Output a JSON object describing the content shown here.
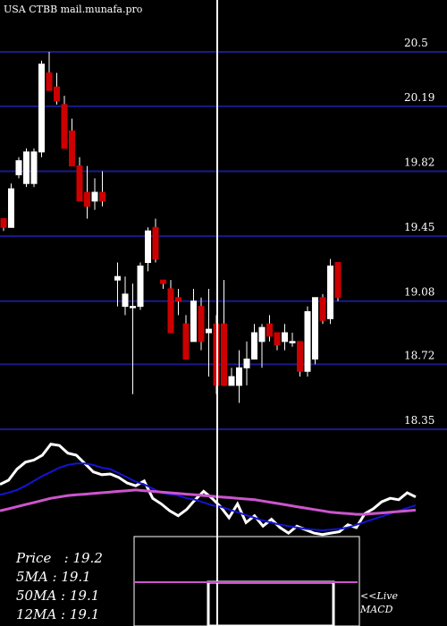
{
  "header": {
    "title": "USA CTBB mail.munafa.pro"
  },
  "legend": {
    "price": "Price   : 19.2",
    "ma5": "5MA : 19.1",
    "ma50": "50MA : 19.1",
    "ma12": "12MA : 19.1"
  },
  "macd": {
    "live_label": "<<Live",
    "macd_label": "MACD"
  },
  "colors": {
    "background": "#000000",
    "grid": "#1a1a8c",
    "up": "#ffffff",
    "down": "#cc0000",
    "ema_fast": "#1414d2",
    "ema_slow": "#cc55cc",
    "price_line": "#ffffff"
  },
  "chart_data": [
    {
      "type": "candlestick",
      "title": "USA CTBB mail.munafa.pro",
      "yticks": [
        20.5,
        20.19,
        19.82,
        19.45,
        19.08,
        18.72,
        18.35
      ],
      "ylim": [
        18.35,
        20.5
      ],
      "highlight_index": 28,
      "candles": [
        {
          "o": 19.55,
          "h": 19.55,
          "l": 19.48,
          "c": 19.5
        },
        {
          "o": 19.5,
          "h": 19.75,
          "l": 19.5,
          "c": 19.72
        },
        {
          "o": 19.8,
          "h": 19.9,
          "l": 19.78,
          "c": 19.88
        },
        {
          "o": 19.75,
          "h": 19.95,
          "l": 19.73,
          "c": 19.93
        },
        {
          "o": 19.75,
          "h": 19.95,
          "l": 19.73,
          "c": 19.93
        },
        {
          "o": 19.93,
          "h": 20.45,
          "l": 19.9,
          "c": 20.43
        },
        {
          "o": 20.38,
          "h": 20.5,
          "l": 20.28,
          "c": 20.28
        },
        {
          "o": 20.3,
          "h": 20.38,
          "l": 20.2,
          "c": 20.22
        },
        {
          "o": 20.2,
          "h": 20.25,
          "l": 19.95,
          "c": 19.95
        },
        {
          "o": 20.05,
          "h": 20.12,
          "l": 19.85,
          "c": 19.85
        },
        {
          "o": 19.85,
          "h": 19.9,
          "l": 19.65,
          "c": 19.65
        },
        {
          "o": 19.7,
          "h": 19.85,
          "l": 19.55,
          "c": 19.62
        },
        {
          "o": 19.65,
          "h": 19.78,
          "l": 19.6,
          "c": 19.7
        },
        {
          "o": 19.7,
          "h": 19.82,
          "l": 19.62,
          "c": 19.65
        },
        null,
        {
          "o": 19.2,
          "h": 19.3,
          "l": 19.05,
          "c": 19.22
        },
        {
          "o": 19.05,
          "h": 19.22,
          "l": 19.0,
          "c": 19.12
        },
        {
          "o": 19.05,
          "h": 19.18,
          "l": 18.55,
          "c": 19.05
        },
        {
          "o": 19.05,
          "h": 19.3,
          "l": 19.03,
          "c": 19.28
        },
        {
          "o": 19.3,
          "h": 19.5,
          "l": 19.25,
          "c": 19.48
        },
        {
          "o": 19.5,
          "h": 19.55,
          "l": 19.3,
          "c": 19.32
        },
        {
          "o": 19.2,
          "h": 19.2,
          "l": 19.15,
          "c": 19.18
        },
        {
          "o": 19.15,
          "h": 19.2,
          "l": 18.9,
          "c": 18.9
        },
        {
          "o": 19.1,
          "h": 19.15,
          "l": 19.0,
          "c": 19.08
        },
        {
          "o": 18.95,
          "h": 19.0,
          "l": 18.75,
          "c": 18.75
        },
        {
          "o": 18.85,
          "h": 19.15,
          "l": 18.85,
          "c": 19.08
        },
        {
          "o": 19.05,
          "h": 19.1,
          "l": 18.8,
          "c": 18.85
        },
        {
          "o": 18.9,
          "h": 19.15,
          "l": 18.65,
          "c": 18.92
        },
        {
          "o": 18.95,
          "h": 19.0,
          "l": 18.55,
          "c": 18.6
        },
        {
          "o": 18.95,
          "h": 19.2,
          "l": 18.6,
          "c": 18.6
        },
        {
          "o": 18.6,
          "h": 18.7,
          "l": 18.6,
          "c": 18.65
        },
        {
          "o": 18.6,
          "h": 18.8,
          "l": 18.5,
          "c": 18.7
        },
        {
          "o": 18.7,
          "h": 18.85,
          "l": 18.6,
          "c": 18.75
        },
        {
          "o": 18.75,
          "h": 18.95,
          "l": 18.75,
          "c": 18.9
        },
        {
          "o": 18.85,
          "h": 18.95,
          "l": 18.7,
          "c": 18.93
        },
        {
          "o": 18.95,
          "h": 19.0,
          "l": 18.85,
          "c": 18.88
        },
        {
          "o": 18.9,
          "h": 18.9,
          "l": 18.8,
          "c": 18.83
        },
        {
          "o": 18.85,
          "h": 18.95,
          "l": 18.8,
          "c": 18.9
        },
        {
          "o": 18.85,
          "h": 18.9,
          "l": 18.82,
          "c": 18.85
        },
        {
          "o": 18.85,
          "h": 18.85,
          "l": 18.65,
          "c": 18.68
        },
        {
          "o": 18.68,
          "h": 19.05,
          "l": 18.65,
          "c": 19.02
        },
        {
          "o": 18.75,
          "h": 19.1,
          "l": 18.72,
          "c": 19.1
        },
        {
          "o": 19.1,
          "h": 19.12,
          "l": 18.95,
          "c": 18.97
        },
        {
          "o": 18.98,
          "h": 19.32,
          "l": 18.95,
          "c": 19.28
        },
        {
          "o": 19.3,
          "h": 19.28,
          "l": 19.08,
          "c": 19.1
        }
      ]
    },
    {
      "type": "line",
      "title": "MACD",
      "series": [
        {
          "name": "",
          "role": "price",
          "values": [
            0.4,
            0.46,
            0.62,
            0.72,
            0.75,
            0.82,
            0.98,
            0.96,
            0.85,
            0.82,
            0.7,
            0.58,
            0.54,
            0.55,
            0.5,
            0.42,
            0.38,
            0.45,
            0.2,
            0.12,
            0.02,
            -0.05,
            0.04,
            0.18,
            0.3,
            0.2,
            0.08,
            -0.08,
            0.12,
            -0.15,
            -0.05,
            -0.2,
            -0.1,
            -0.22,
            -0.3,
            -0.2,
            -0.25,
            -0.3,
            -0.32,
            -0.3,
            -0.28,
            -0.18,
            -0.22,
            -0.02,
            0.05,
            0.15,
            0.2,
            0.18,
            0.28,
            0.22
          ]
        },
        {
          "name": "",
          "role": "fast",
          "values": [
            0.25,
            0.28,
            0.32,
            0.38,
            0.45,
            0.52,
            0.58,
            0.64,
            0.68,
            0.7,
            0.7,
            0.68,
            0.64,
            0.62,
            0.56,
            0.5,
            0.44,
            0.4,
            0.34,
            0.28,
            0.26,
            0.24,
            0.2,
            0.18,
            0.14,
            0.1,
            0.08,
            0.04,
            0.0,
            -0.04,
            -0.08,
            -0.12,
            -0.15,
            -0.18,
            -0.2,
            -0.22,
            -0.24,
            -0.25,
            -0.26,
            -0.25,
            -0.24,
            -0.22,
            -0.18,
            -0.14,
            -0.1,
            -0.06,
            -0.02,
            0.02,
            0.06,
            0.1
          ]
        },
        {
          "name": "",
          "role": "slow",
          "values": [
            0.02,
            0.05,
            0.08,
            0.11,
            0.14,
            0.17,
            0.2,
            0.22,
            0.24,
            0.25,
            0.26,
            0.27,
            0.28,
            0.29,
            0.3,
            0.31,
            0.32,
            0.31,
            0.3,
            0.29,
            0.28,
            0.27,
            0.26,
            0.25,
            0.24,
            0.23,
            0.22,
            0.21,
            0.2,
            0.19,
            0.18,
            0.16,
            0.14,
            0.12,
            0.1,
            0.08,
            0.06,
            0.04,
            0.02,
            0.0,
            -0.01,
            -0.02,
            -0.03,
            -0.03,
            -0.02,
            -0.01,
            0.0,
            0.01,
            0.02,
            0.03
          ]
        }
      ]
    }
  ]
}
